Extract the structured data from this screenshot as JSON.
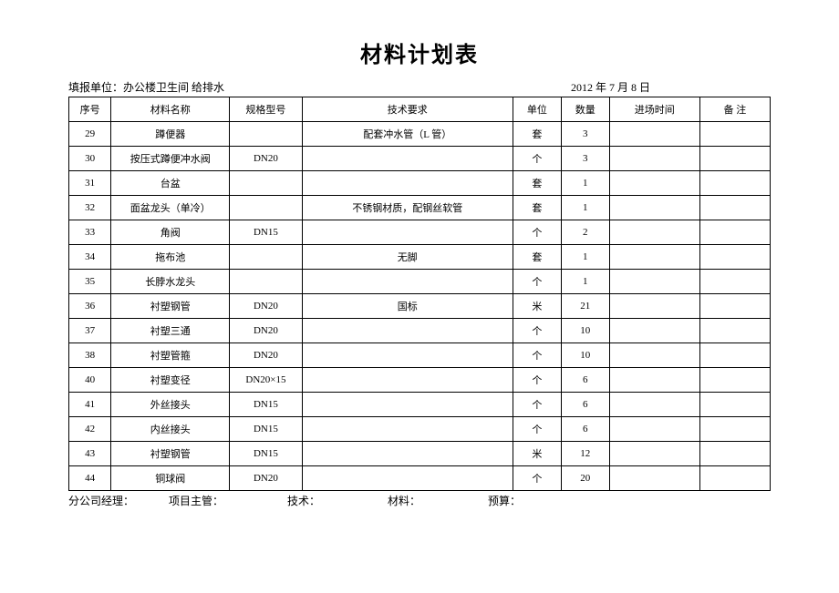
{
  "title": "材料计划表",
  "header": {
    "report_unit_label": "填报单位：",
    "report_unit_value": "办公楼卫生间  给排水",
    "date": "2012 年 7 月 8 日"
  },
  "columns": {
    "seq": "序号",
    "name": "材料名称",
    "spec": "规格型号",
    "tech": "技术要求",
    "unit": "单位",
    "qty": "数量",
    "time": "进场时间",
    "note": "备    注"
  },
  "rows": [
    {
      "seq": "29",
      "name": "蹲便器",
      "spec": "",
      "tech": "配套冲水管（L 管）",
      "unit": "套",
      "qty": "3",
      "time": "",
      "note": ""
    },
    {
      "seq": "30",
      "name": "按压式蹲便冲水阀",
      "spec": "DN20",
      "tech": "",
      "unit": "个",
      "qty": "3",
      "time": "",
      "note": ""
    },
    {
      "seq": "31",
      "name": "台盆",
      "spec": "",
      "tech": "",
      "unit": "套",
      "qty": "1",
      "time": "",
      "note": ""
    },
    {
      "seq": "32",
      "name": "面盆龙头（单冷）",
      "spec": "",
      "tech": "不锈钢材质，配钢丝软管",
      "unit": "套",
      "qty": "1",
      "time": "",
      "note": ""
    },
    {
      "seq": "33",
      "name": "角阀",
      "spec": "DN15",
      "tech": "",
      "unit": "个",
      "qty": "2",
      "time": "",
      "note": ""
    },
    {
      "seq": "34",
      "name": "拖布池",
      "spec": "",
      "tech": "无脚",
      "unit": "套",
      "qty": "1",
      "time": "",
      "note": ""
    },
    {
      "seq": "35",
      "name": "长脖水龙头",
      "spec": "",
      "tech": "",
      "unit": "个",
      "qty": "1",
      "time": "",
      "note": ""
    },
    {
      "seq": "36",
      "name": "衬塑钢管",
      "spec": "DN20",
      "tech": "国标",
      "unit": "米",
      "qty": "21",
      "time": "",
      "note": ""
    },
    {
      "seq": "37",
      "name": "衬塑三通",
      "spec": "DN20",
      "tech": "",
      "unit": "个",
      "qty": "10",
      "time": "",
      "note": ""
    },
    {
      "seq": "38",
      "name": "衬塑管箍",
      "spec": "DN20",
      "tech": "",
      "unit": "个",
      "qty": "10",
      "time": "",
      "note": ""
    },
    {
      "seq": "40",
      "name": "衬塑变径",
      "spec": "DN20×15",
      "tech": "",
      "unit": "个",
      "qty": "6",
      "time": "",
      "note": ""
    },
    {
      "seq": "41",
      "name": "外丝接头",
      "spec": "DN15",
      "tech": "",
      "unit": "个",
      "qty": "6",
      "time": "",
      "note": ""
    },
    {
      "seq": "42",
      "name": "内丝接头",
      "spec": "DN15",
      "tech": "",
      "unit": "个",
      "qty": "6",
      "time": "",
      "note": ""
    },
    {
      "seq": "43",
      "name": "衬塑钢管",
      "spec": "DN15",
      "tech": "",
      "unit": "米",
      "qty": "12",
      "time": "",
      "note": ""
    },
    {
      "seq": "44",
      "name": "铜球阀",
      "spec": "DN20",
      "tech": "",
      "unit": "个",
      "qty": "20",
      "time": "",
      "note": ""
    }
  ],
  "footer": {
    "manager": "分公司经理：",
    "supervisor": "项目主管：",
    "tech": "技术：",
    "material": "材料：",
    "budget": "预算："
  },
  "style": {
    "background_color": "#ffffff",
    "border_color": "#000000",
    "title_fontsize": 24,
    "body_fontsize": 11,
    "header_fontsize": 12
  }
}
